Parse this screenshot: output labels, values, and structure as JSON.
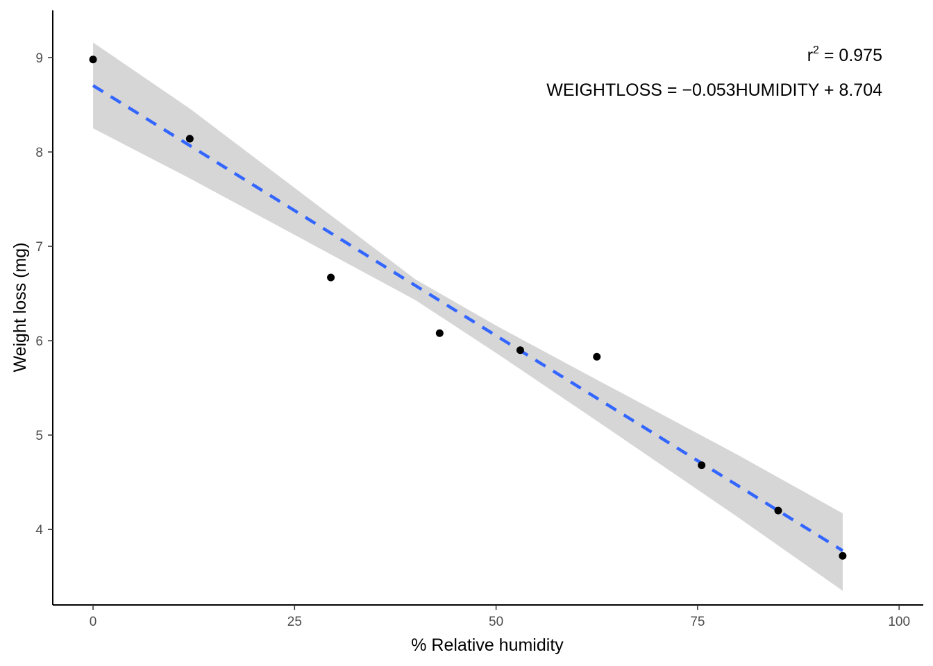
{
  "chart_data": {
    "type": "scatter",
    "title": "",
    "xlabel": "% Relative humidity",
    "ylabel": "Weight loss (mg)",
    "xlim": [
      -5,
      103
    ],
    "ylim": [
      3.2,
      9.5
    ],
    "x_ticks": [
      0,
      25,
      50,
      75,
      100
    ],
    "y_ticks": [
      4,
      5,
      6,
      7,
      8,
      9
    ],
    "grid": false,
    "points": [
      {
        "x": 0,
        "y": 8.98
      },
      {
        "x": 12,
        "y": 8.14
      },
      {
        "x": 29.5,
        "y": 6.67
      },
      {
        "x": 43,
        "y": 6.08
      },
      {
        "x": 53,
        "y": 5.9
      },
      {
        "x": 62.5,
        "y": 5.83
      },
      {
        "x": 75.5,
        "y": 4.68
      },
      {
        "x": 85,
        "y": 4.2
      },
      {
        "x": 93,
        "y": 3.72
      }
    ],
    "fit": {
      "slope": -0.053,
      "intercept": 8.704,
      "x_range": [
        0,
        93
      ],
      "line_style": "dashed",
      "color": "#3366ff",
      "ci_band": [
        {
          "x": 0,
          "lower": 8.25,
          "upper": 9.16
        },
        {
          "x": 12,
          "lower": 7.72,
          "upper": 8.46
        },
        {
          "x": 40,
          "lower": 6.43,
          "upper": 6.65
        },
        {
          "x": 50,
          "lower": 5.87,
          "upper": 6.16
        },
        {
          "x": 62,
          "lower": 5.18,
          "upper": 5.61
        },
        {
          "x": 80,
          "lower": 4.13,
          "upper": 4.79
        },
        {
          "x": 93,
          "lower": 3.35,
          "upper": 4.17
        }
      ],
      "band_color": "#d6d6d6"
    },
    "point_color": "#000000",
    "annotations": {
      "r2_label": "r",
      "r2_superscript": "2",
      "r2_value": " = 0.975",
      "equation": "WEIGHTLOSS = −0.053HUMIDITY + 8.704"
    }
  }
}
